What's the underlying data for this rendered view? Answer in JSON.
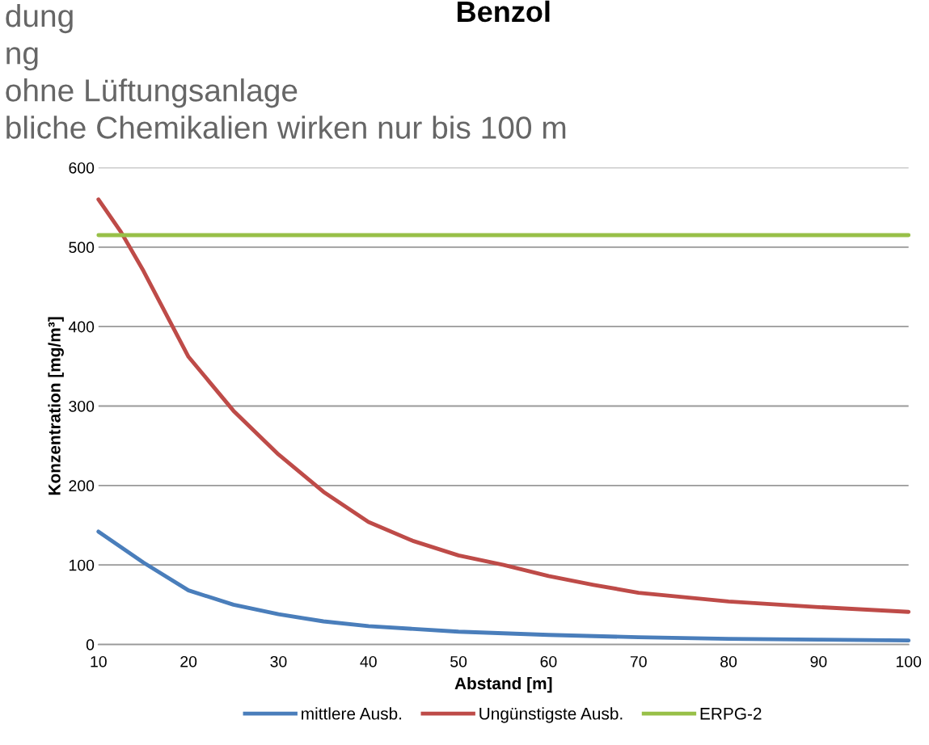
{
  "chart_data": {
    "type": "line",
    "title": "Benzol",
    "xlabel": "Abstand [m]",
    "ylabel": "Konzentration [mg/m³]",
    "xlim": [
      10,
      100
    ],
    "xticks": [
      10,
      20,
      30,
      40,
      50,
      60,
      70,
      80,
      90,
      100
    ],
    "ylim": [
      0,
      600
    ],
    "yticks": [
      0,
      100,
      200,
      300,
      400,
      500,
      600
    ],
    "grid": "y",
    "legend": "bottom",
    "marker": "none",
    "line_style": "solid",
    "series": [
      {
        "name": "mittlere Ausb.",
        "color": "#4a7ebb",
        "x": [
          10,
          15,
          20,
          25,
          30,
          35,
          40,
          50,
          60,
          70,
          80,
          90,
          100
        ],
        "values": [
          142,
          103,
          68,
          50,
          38,
          29,
          23,
          16,
          12,
          9,
          7,
          6,
          5
        ]
      },
      {
        "name": "Ungünstigste Ausb.",
        "color": "#be4b48",
        "x": [
          10,
          12.5,
          15,
          20,
          25,
          30,
          35,
          40,
          45,
          50,
          55,
          60,
          65,
          70,
          80,
          90,
          100
        ],
        "values": [
          560,
          519,
          470,
          362,
          294,
          239,
          192,
          154,
          130,
          112,
          100,
          86,
          75,
          65,
          54,
          47,
          41
        ]
      },
      {
        "name": "ERPG-2",
        "color": "#98c048",
        "x": [
          10,
          100
        ],
        "values": [
          515,
          515
        ]
      }
    ],
    "annotations": [
      "dung",
      "ng",
      "ohne Lüftungsanlage",
      "bliche Chemikalien wirken nur bis 100 m"
    ]
  }
}
